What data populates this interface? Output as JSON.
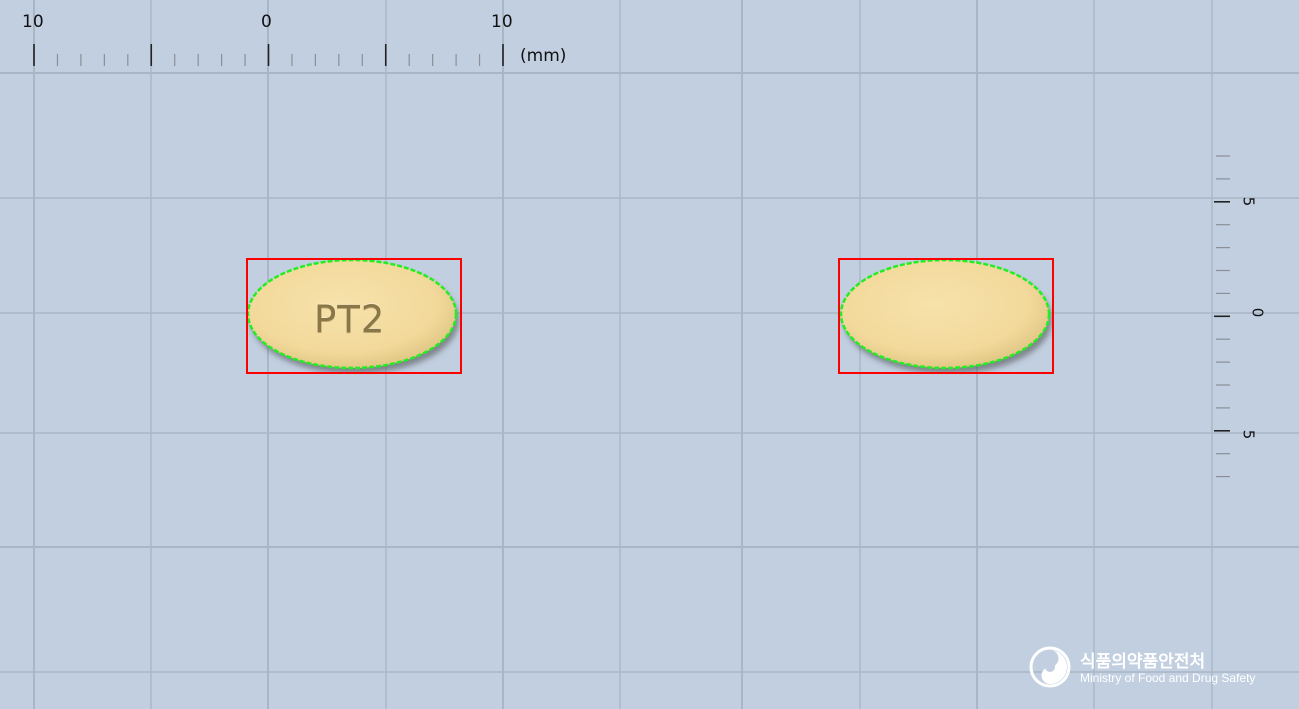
{
  "image": {
    "background_color": "#c1cfe0",
    "grid_color": "#a9b6c6"
  },
  "ruler_top": {
    "unit_label": "(mm)",
    "labels": [
      "10",
      "0",
      "10"
    ]
  },
  "ruler_right": {
    "labels": [
      "5",
      "0",
      "5"
    ]
  },
  "tablets": [
    {
      "side": "front",
      "imprint": "PT2",
      "shape": "oval",
      "color": "#f2d99b",
      "outline_color": "#ff0000",
      "contour_color": "#22ee22"
    },
    {
      "side": "back",
      "imprint": "",
      "shape": "oval",
      "color": "#f2d99b",
      "outline_color": "#ff0000",
      "contour_color": "#22ee22"
    }
  ],
  "logo": {
    "icon": "mfds-emblem-icon",
    "name_korean": "식품의약품안전처",
    "name_english": "Ministry of Food and Drug Safety"
  }
}
